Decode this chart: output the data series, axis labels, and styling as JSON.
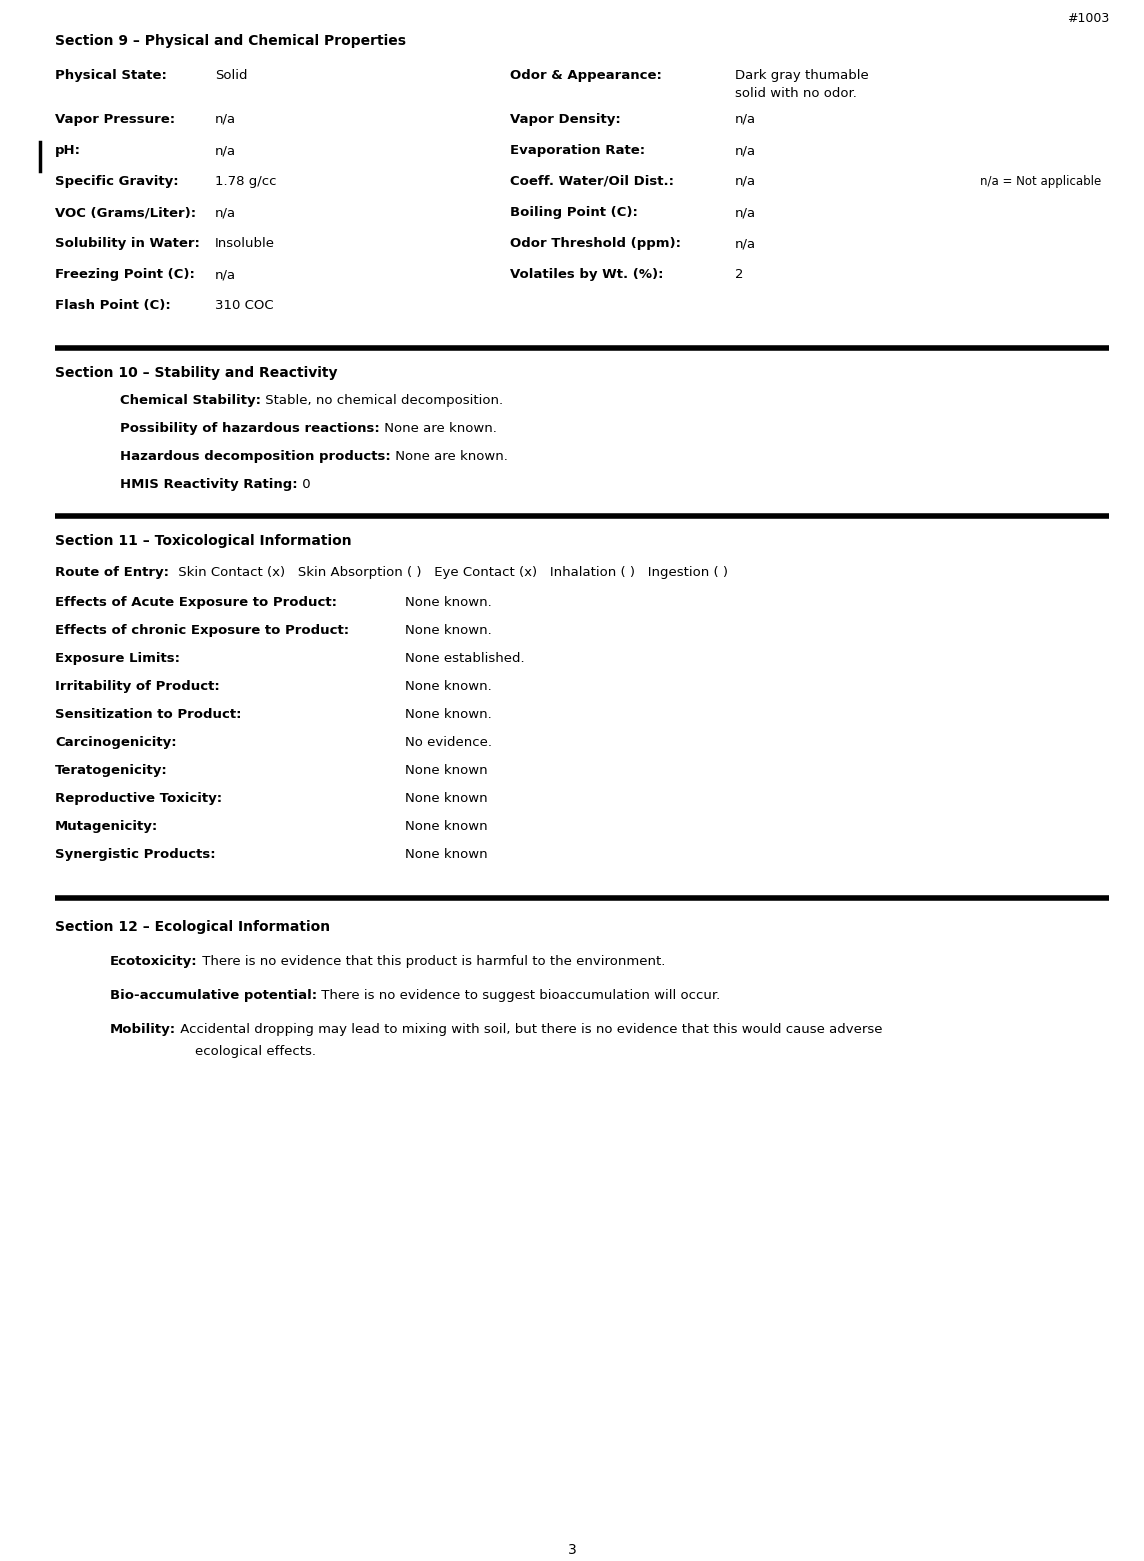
{
  "page_number": "3",
  "header_ref": "#1003",
  "bg_color": "#ffffff",
  "text_color": "#000000",
  "section9_title": "Section 9 – Physical and Chemical Properties",
  "section9_props_left": [
    {
      "label": "Physical State:",
      "value": "Solid"
    },
    {
      "label": "Vapor Pressure:",
      "value": "n/a"
    },
    {
      "label": "pH:",
      "value": "n/a"
    },
    {
      "label": "Specific Gravity:",
      "value": "1.78 g/cc"
    },
    {
      "label": "VOC (Grams/Liter):",
      "value": "n/a"
    },
    {
      "label": "Solubility in Water:",
      "value": "Insoluble"
    },
    {
      "label": "Freezing Point (C):",
      "value": "n/a"
    },
    {
      "label": "Flash Point (C):",
      "value": "310 COC"
    }
  ],
  "section9_props_right": [
    {
      "label": "Odor & Appearance:",
      "value": "Dark gray thumable\nsolid with no odor."
    },
    {
      "label": "Vapor Density:",
      "value": "n/a"
    },
    {
      "label": "Evaporation Rate:",
      "value": "n/a"
    },
    {
      "label": "Coeff. Water/Oil Dist.:",
      "value": "n/a"
    },
    {
      "label": "Boiling Point (C):",
      "value": "n/a"
    },
    {
      "label": "Odor Threshold (ppm):",
      "value": "n/a"
    },
    {
      "label": "Volatiles by Wt. (%):",
      "value": "2"
    }
  ],
  "na_note": "n/a = Not applicable",
  "section10_title": "Section 10 – Stability and Reactivity",
  "section10_items": [
    {
      "bold": "Chemical Stability:",
      "normal": " Stable, no chemical decomposition."
    },
    {
      "bold": "Possibility of hazardous reactions:",
      "normal": " None are known."
    },
    {
      "bold": "Hazardous decomposition products:",
      "normal": " None are known."
    },
    {
      "bold": "HMIS Reactivity Rating:",
      "normal": " 0"
    }
  ],
  "section11_title": "Section 11 – Toxicological Information",
  "route_of_entry_bold": "Route of Entry: ",
  "route_of_entry_normal": " Skin Contact (x)   Skin Absorption ( )   Eye Contact (x)   Inhalation ( )   Ingestion ( )",
  "section11_items": [
    {
      "bold": "Effects of Acute Exposure to Product:",
      "value": "None known."
    },
    {
      "bold": "Effects of chronic Exposure to Product:",
      "value": "None known."
    },
    {
      "bold": "Exposure Limits:",
      "value": "None established."
    },
    {
      "bold": "Irritability of Product:",
      "value": "None known."
    },
    {
      "bold": "Sensitization to Product:",
      "value": "None known."
    },
    {
      "bold": "Carcinogenicity:",
      "value": "No evidence."
    },
    {
      "bold": "Teratogenicity:",
      "value": "None known"
    },
    {
      "bold": "Reproductive Toxicity:",
      "value": "None known"
    },
    {
      "bold": "Mutagenicity:",
      "value": "None known"
    },
    {
      "bold": "Synergistic Products:",
      "value": "None known"
    }
  ],
  "section12_title": "Section 12 – Ecological Information",
  "section12_items": [
    {
      "bold": "Ecotoxicity:",
      "normal": " There is no evidence that this product is harmful to the environment."
    },
    {
      "bold": "Bio-accumulative potential:",
      "normal": " There is no evidence to suggest bioaccumulation will occur."
    },
    {
      "bold": "Mobility:",
      "normal": " Accidental dropping may lead to mixing with soil, but there is no evidence that this would cause adverse",
      "continuation": "ecological effects."
    }
  ],
  "figwidth": 11.44,
  "figheight": 15.61,
  "dpi": 100
}
